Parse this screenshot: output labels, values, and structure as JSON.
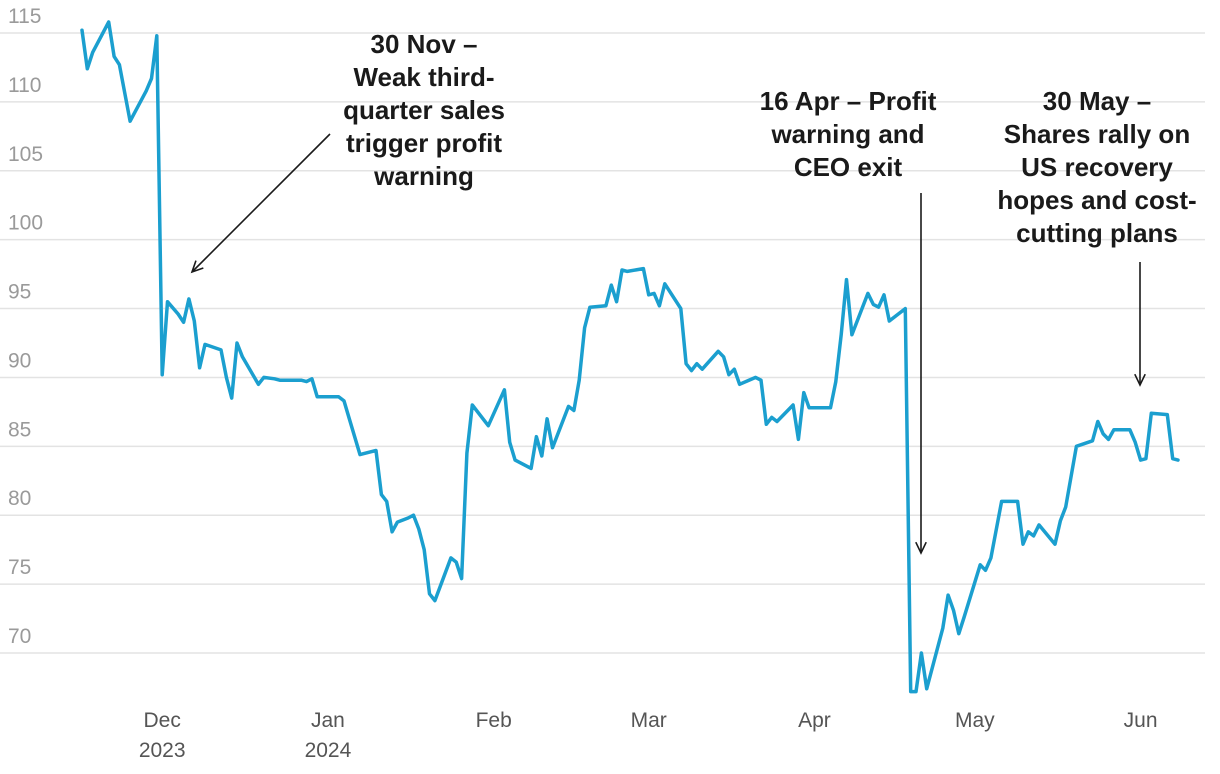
{
  "chart_data": {
    "type": "line",
    "title": "",
    "xlabel": "",
    "ylabel": "",
    "ylim": [
      67,
      116
    ],
    "xlim": [
      "2023-11-16",
      "2024-06-10"
    ],
    "y_ticks": [
      70,
      75,
      80,
      85,
      90,
      95,
      100,
      105,
      110,
      115
    ],
    "x_ticks": [
      {
        "date": "2023-12-01",
        "label": "Dec",
        "sublabel": "2023"
      },
      {
        "date": "2024-01-01",
        "label": "Jan",
        "sublabel": "2024"
      },
      {
        "date": "2024-02-01",
        "label": "Feb",
        "sublabel": ""
      },
      {
        "date": "2024-03-01",
        "label": "Mar",
        "sublabel": ""
      },
      {
        "date": "2024-04-01",
        "label": "Apr",
        "sublabel": ""
      },
      {
        "date": "2024-05-01",
        "label": "May",
        "sublabel": ""
      },
      {
        "date": "2024-06-01",
        "label": "Jun",
        "sublabel": ""
      }
    ],
    "grid": true,
    "colors": {
      "line": "#1b9fcf",
      "grid": "#e3e3e3",
      "text": "#1a1a1a",
      "tick": "#9a9a9a"
    },
    "series": [
      {
        "name": "",
        "points": [
          [
            "2023-11-16",
            115.2
          ],
          [
            "2023-11-17",
            112.4
          ],
          [
            "2023-11-18",
            113.6
          ],
          [
            "2023-11-21",
            115.8
          ],
          [
            "2023-11-22",
            113.3
          ],
          [
            "2023-11-23",
            112.7
          ],
          [
            "2023-11-25",
            108.6
          ],
          [
            "2023-11-28",
            110.8
          ],
          [
            "2023-11-29",
            111.7
          ],
          [
            "2023-11-30",
            114.8
          ],
          [
            "2023-12-01",
            90.2
          ],
          [
            "2023-12-02",
            95.5
          ],
          [
            "2023-12-04",
            94.6
          ],
          [
            "2023-12-05",
            94.0
          ],
          [
            "2023-12-06",
            95.7
          ],
          [
            "2023-12-07",
            94.1
          ],
          [
            "2023-12-08",
            90.7
          ],
          [
            "2023-12-09",
            92.4
          ],
          [
            "2023-12-12",
            92.0
          ],
          [
            "2023-12-13",
            90.0
          ],
          [
            "2023-12-14",
            88.5
          ],
          [
            "2023-12-15",
            92.5
          ],
          [
            "2023-12-16",
            91.5
          ],
          [
            "2023-12-19",
            89.5
          ],
          [
            "2023-12-20",
            90.0
          ],
          [
            "2023-12-22",
            89.9
          ],
          [
            "2023-12-23",
            89.8
          ],
          [
            "2023-12-27",
            89.8
          ],
          [
            "2023-12-28",
            89.7
          ],
          [
            "2023-12-29",
            89.9
          ],
          [
            "2023-12-30",
            88.6
          ],
          [
            "2024-01-03",
            88.6
          ],
          [
            "2024-01-04",
            88.3
          ],
          [
            "2024-01-05",
            87.0
          ],
          [
            "2024-01-07",
            84.4
          ],
          [
            "2024-01-09",
            84.6
          ],
          [
            "2024-01-10",
            84.7
          ],
          [
            "2024-01-11",
            81.5
          ],
          [
            "2024-01-12",
            81.0
          ],
          [
            "2024-01-13",
            78.8
          ],
          [
            "2024-01-14",
            79.5
          ],
          [
            "2024-01-16",
            79.8
          ],
          [
            "2024-01-17",
            80.0
          ],
          [
            "2024-01-18",
            79.0
          ],
          [
            "2024-01-19",
            77.5
          ],
          [
            "2024-01-20",
            74.3
          ],
          [
            "2024-01-21",
            73.8
          ],
          [
            "2024-01-24",
            76.9
          ],
          [
            "2024-01-25",
            76.6
          ],
          [
            "2024-01-26",
            75.4
          ],
          [
            "2024-01-27",
            84.5
          ],
          [
            "2024-01-28",
            88.0
          ],
          [
            "2024-01-31",
            86.5
          ],
          [
            "2024-02-03",
            89.1
          ],
          [
            "2024-02-04",
            85.3
          ],
          [
            "2024-02-05",
            84.0
          ],
          [
            "2024-02-08",
            83.4
          ],
          [
            "2024-02-09",
            85.7
          ],
          [
            "2024-02-10",
            84.3
          ],
          [
            "2024-02-11",
            87.0
          ],
          [
            "2024-02-12",
            84.9
          ],
          [
            "2024-02-15",
            87.9
          ],
          [
            "2024-02-16",
            87.6
          ],
          [
            "2024-02-17",
            89.8
          ],
          [
            "2024-02-18",
            93.6
          ],
          [
            "2024-02-19",
            95.1
          ],
          [
            "2024-02-22",
            95.2
          ],
          [
            "2024-02-23",
            96.7
          ],
          [
            "2024-02-24",
            95.5
          ],
          [
            "2024-02-25",
            97.8
          ],
          [
            "2024-02-26",
            97.7
          ],
          [
            "2024-02-29",
            97.9
          ],
          [
            "2024-03-01",
            96.0
          ],
          [
            "2024-03-02",
            96.1
          ],
          [
            "2024-03-03",
            95.2
          ],
          [
            "2024-03-04",
            96.8
          ],
          [
            "2024-03-07",
            95.0
          ],
          [
            "2024-03-08",
            91.0
          ],
          [
            "2024-03-09",
            90.5
          ],
          [
            "2024-03-10",
            91.0
          ],
          [
            "2024-03-11",
            90.6
          ],
          [
            "2024-03-14",
            91.9
          ],
          [
            "2024-03-15",
            91.5
          ],
          [
            "2024-03-16",
            90.2
          ],
          [
            "2024-03-17",
            90.6
          ],
          [
            "2024-03-18",
            89.5
          ],
          [
            "2024-03-21",
            90.0
          ],
          [
            "2024-03-22",
            89.8
          ],
          [
            "2024-03-23",
            86.6
          ],
          [
            "2024-03-24",
            87.1
          ],
          [
            "2024-03-25",
            86.8
          ],
          [
            "2024-03-28",
            88.0
          ],
          [
            "2024-03-29",
            85.5
          ],
          [
            "2024-03-30",
            88.9
          ],
          [
            "2024-03-31",
            87.8
          ],
          [
            "2024-04-04",
            87.8
          ],
          [
            "2024-04-05",
            89.7
          ],
          [
            "2024-04-06",
            93.1
          ],
          [
            "2024-04-07",
            97.1
          ],
          [
            "2024-04-08",
            93.1
          ],
          [
            "2024-04-11",
            96.1
          ],
          [
            "2024-04-12",
            95.3
          ],
          [
            "2024-04-13",
            95.1
          ],
          [
            "2024-04-14",
            96.0
          ],
          [
            "2024-04-15",
            94.1
          ],
          [
            "2024-04-18",
            95.0
          ],
          [
            "2024-04-19",
            67.2
          ],
          [
            "2024-04-20",
            67.2
          ],
          [
            "2024-04-21",
            70.0
          ],
          [
            "2024-04-22",
            67.4
          ],
          [
            "2024-04-25",
            71.8
          ],
          [
            "2024-04-26",
            74.2
          ],
          [
            "2024-04-27",
            73.1
          ],
          [
            "2024-04-28",
            71.4
          ],
          [
            "2024-04-29",
            72.6
          ],
          [
            "2024-05-02",
            76.4
          ],
          [
            "2024-05-03",
            76.0
          ],
          [
            "2024-05-04",
            76.9
          ],
          [
            "2024-05-06",
            81.0
          ],
          [
            "2024-05-09",
            81.0
          ],
          [
            "2024-05-10",
            77.9
          ],
          [
            "2024-05-11",
            78.8
          ],
          [
            "2024-05-12",
            78.5
          ],
          [
            "2024-05-13",
            79.3
          ],
          [
            "2024-05-16",
            77.9
          ],
          [
            "2024-05-17",
            79.6
          ],
          [
            "2024-05-18",
            80.6
          ],
          [
            "2024-05-20",
            85.0
          ],
          [
            "2024-05-23",
            85.4
          ],
          [
            "2024-05-24",
            86.8
          ],
          [
            "2024-05-25",
            85.9
          ],
          [
            "2024-05-26",
            85.5
          ],
          [
            "2024-05-27",
            86.2
          ],
          [
            "2024-05-30",
            86.2
          ],
          [
            "2024-05-31",
            85.3
          ],
          [
            "2024-06-01",
            84.0
          ],
          [
            "2024-06-02",
            84.1
          ],
          [
            "2024-06-03",
            87.4
          ],
          [
            "2024-06-06",
            87.3
          ],
          [
            "2024-06-07",
            84.1
          ],
          [
            "2024-06-08",
            84.0
          ]
        ]
      }
    ],
    "annotations": [
      {
        "text": [
          "30 Nov –",
          "Weak third-",
          "quarter sales",
          "trigger profit",
          "warning"
        ],
        "date": "2023-11-30",
        "arrow_style": "diagonal"
      },
      {
        "text": [
          "16 Apr – Profit",
          "warning and",
          "CEO exit"
        ],
        "date": "2024-04-16",
        "arrow_style": "vertical"
      },
      {
        "text": [
          "30 May –",
          "Shares rally on",
          "US recovery",
          "hopes and cost-",
          "cutting plans"
        ],
        "date": "2024-05-30",
        "arrow_style": "vertical"
      }
    ]
  }
}
